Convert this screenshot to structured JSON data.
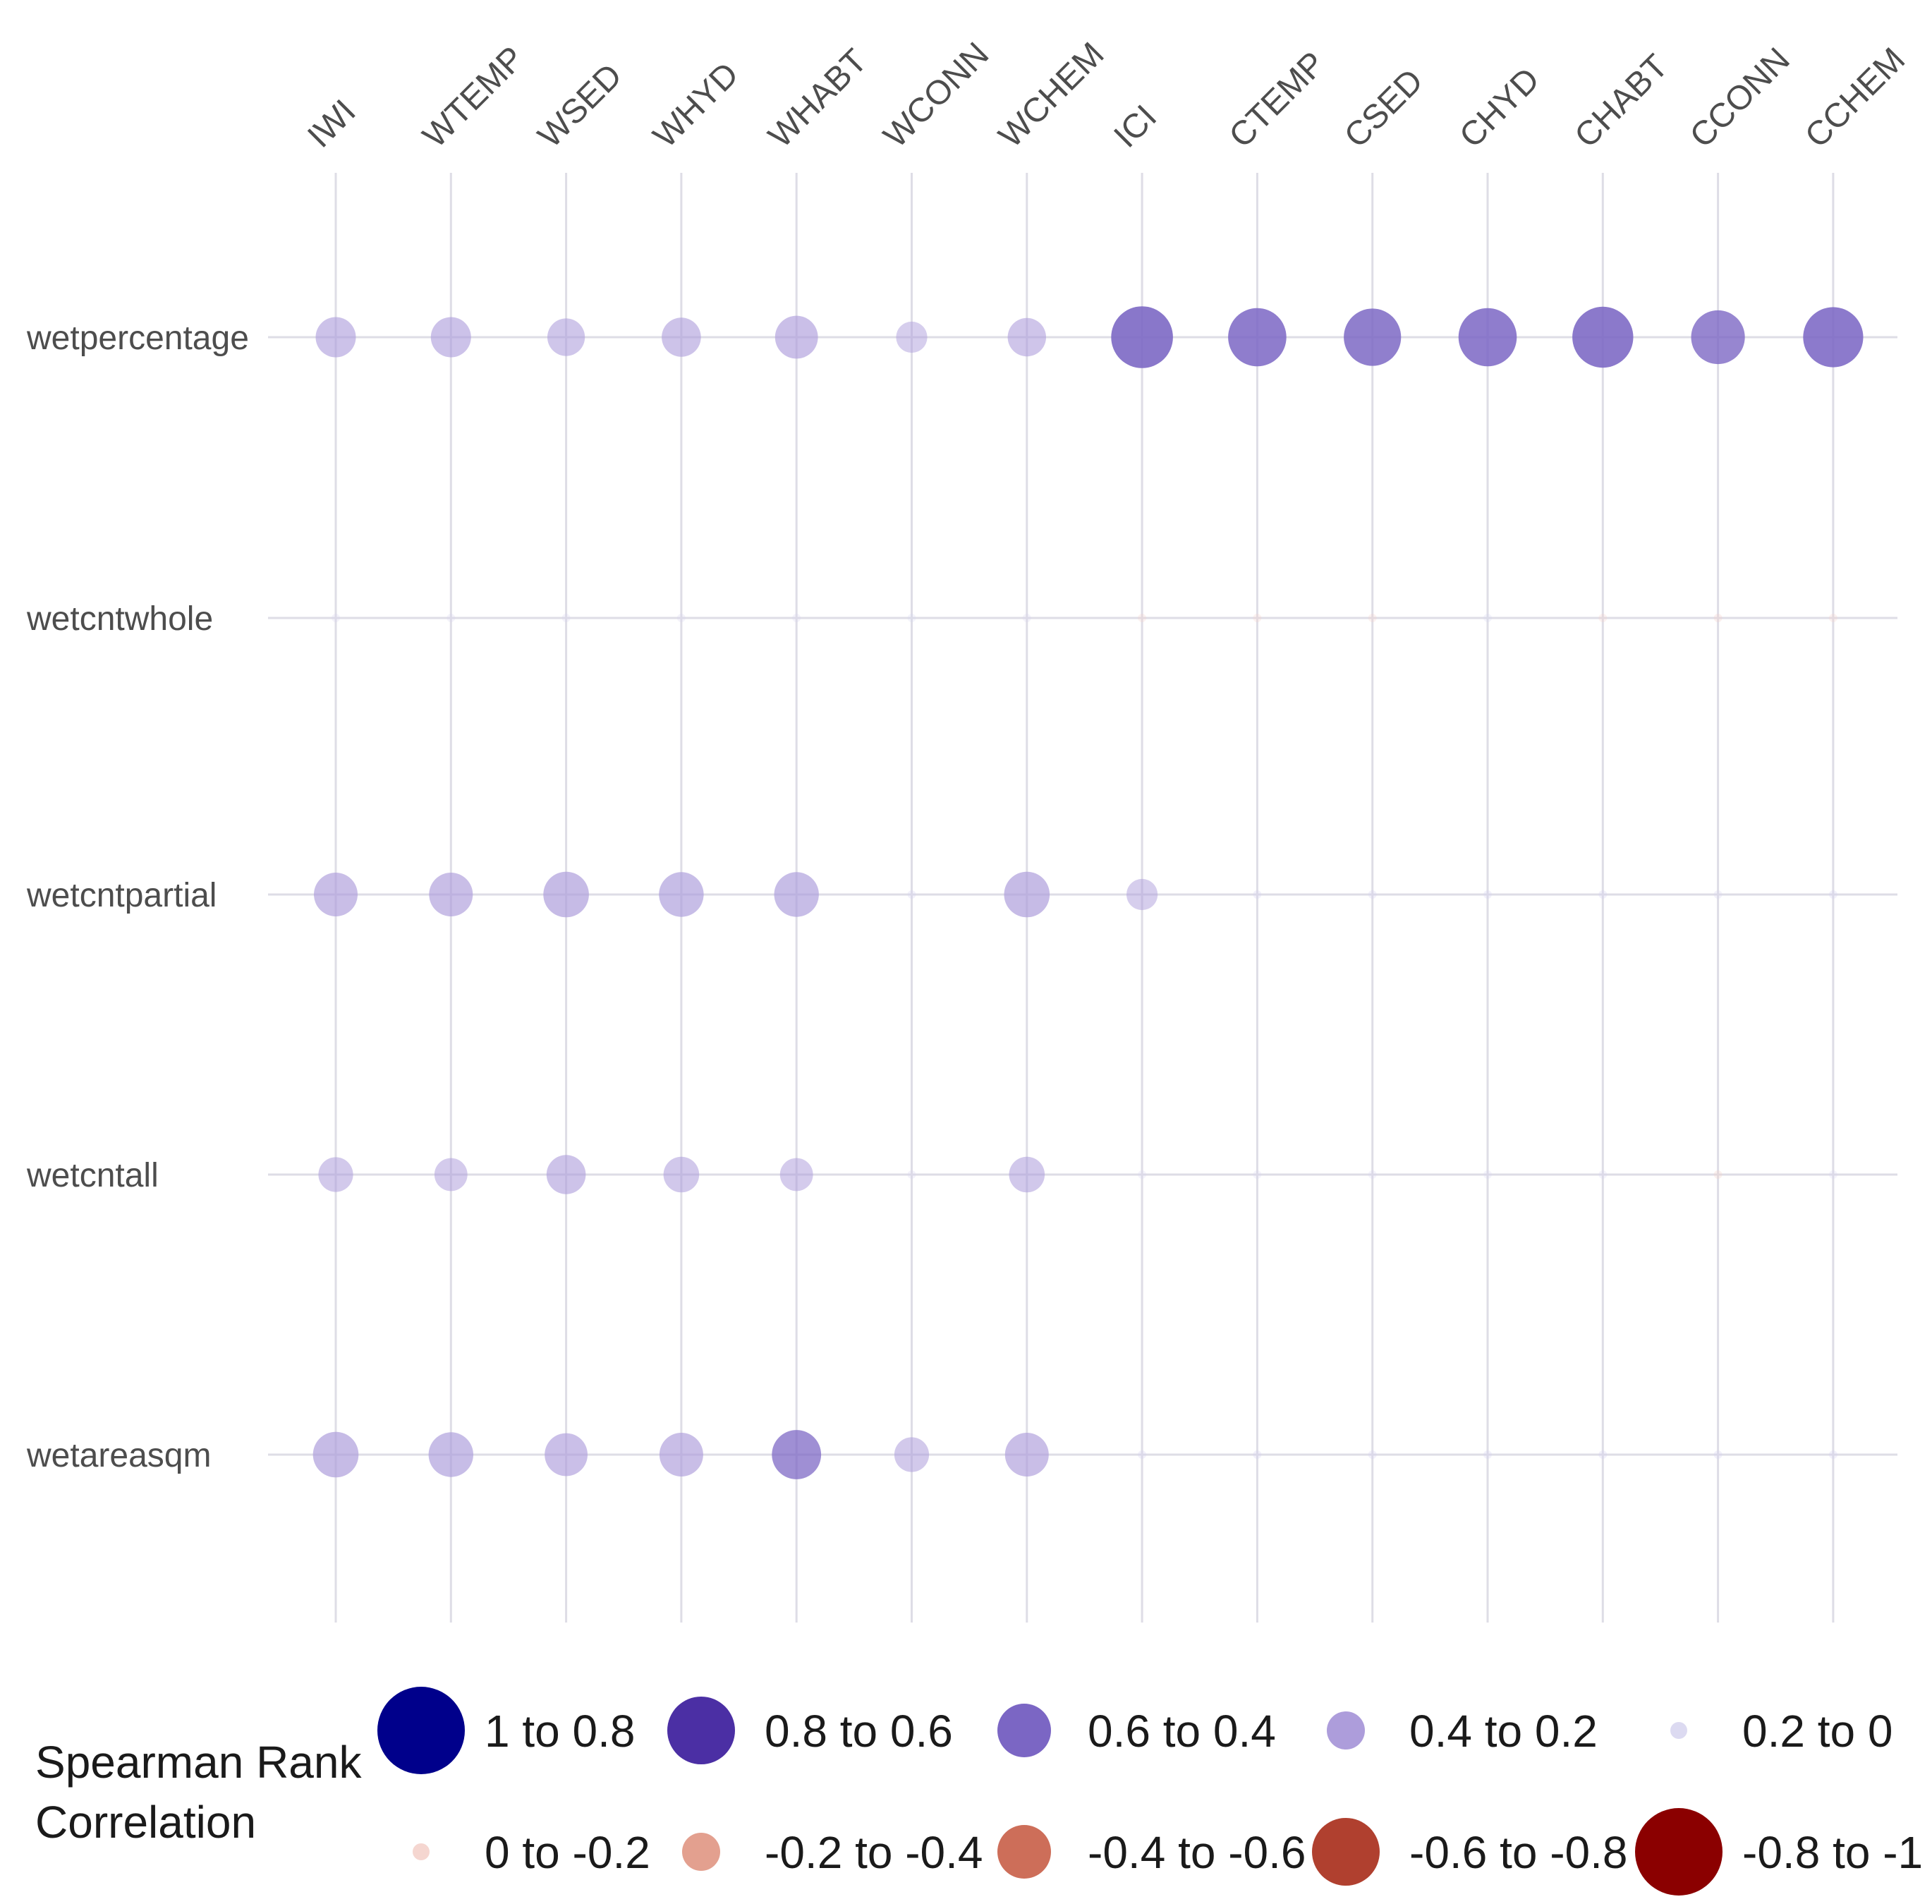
{
  "chart_data": {
    "type": "scatter",
    "x_categories": [
      "IWI",
      "WTEMP",
      "WSED",
      "WHYD",
      "WHABT",
      "WCONN",
      "WCHEM",
      "ICI",
      "CTEMP",
      "CSED",
      "CHYD",
      "CHABT",
      "CCONN",
      "CCHEM"
    ],
    "y_categories": [
      "wetpercentage",
      "wetcntwhole",
      "wetcntpartial",
      "wetcntall",
      "wetareasqm"
    ],
    "values": [
      [
        0.32,
        0.32,
        0.29,
        0.31,
        0.35,
        0.22,
        0.3,
        0.56,
        0.52,
        0.51,
        0.52,
        0.55,
        0.47,
        0.54
      ],
      [
        0.02,
        0.02,
        0.03,
        0.02,
        0.02,
        0.01,
        0.02,
        -0.02,
        -0.02,
        -0.03,
        0.01,
        -0.02,
        -0.05,
        -0.02
      ],
      [
        0.36,
        0.36,
        0.38,
        0.37,
        0.37,
        0.05,
        0.38,
        0.22,
        0.05,
        0.05,
        0.05,
        0.05,
        0.04,
        0.05
      ],
      [
        0.26,
        0.24,
        0.31,
        0.27,
        0.24,
        0.04,
        0.27,
        0.0,
        0.0,
        0.0,
        0.0,
        0.0,
        -0.04,
        0.0
      ],
      [
        0.38,
        0.37,
        0.35,
        0.36,
        0.42,
        0.26,
        0.36,
        0.05,
        0.05,
        0.05,
        0.05,
        0.05,
        0.05,
        0.05
      ]
    ],
    "xlim": [
      0,
      1
    ],
    "grid": true,
    "legend_position": "bottom",
    "legend": {
      "title_line1": "Spearman Rank",
      "title_line2": "Correlation",
      "bins": [
        {
          "label": "1 to 0.8",
          "color": "#00008b"
        },
        {
          "label": "0.8 to 0.6",
          "color": "#4b2fa4"
        },
        {
          "label": "0.6 to 0.4",
          "color": "#7b66c4"
        },
        {
          "label": "0.4 to 0.2",
          "color": "#ad9ddb"
        },
        {
          "label": "0.2 to 0",
          "color": "#d6d3ee"
        },
        {
          "label": "0 to -0.2",
          "color": "#f3cfc8"
        },
        {
          "label": "-0.2 to -0.4",
          "color": "#e3a08f"
        },
        {
          "label": "-0.4 to -0.6",
          "color": "#cd6e59"
        },
        {
          "label": "-0.6 to -0.8",
          "color": "#b0402f"
        },
        {
          "label": "-0.8 to -1",
          "color": "#8b0000"
        }
      ]
    }
  }
}
